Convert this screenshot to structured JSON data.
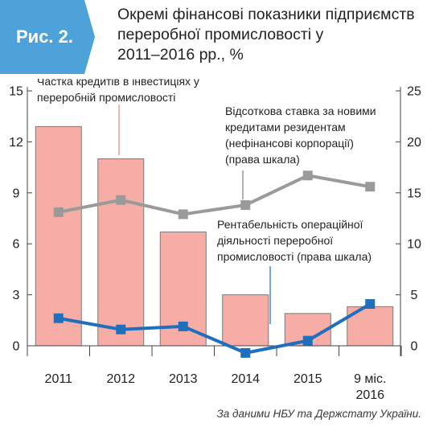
{
  "figure_label": "Рис. 2.",
  "title_lines": [
    "Окремі фінансові показники підприємств",
    "переробної промисловості у",
    "2011–2016 рр., %"
  ],
  "source": "За даними НБУ та Держстату України.",
  "colors": {
    "header_tab": "#4da3d9",
    "bars_fill": "#f6ada6",
    "bars_stroke": "#7a7a7a",
    "interest_line": "#9a9a9a",
    "profitability_line": "#1f6fbd"
  },
  "chart_data": {
    "type": "bar",
    "categories": [
      "2011",
      "2012",
      "2013",
      "2014",
      "2015",
      "9 міс. 2016"
    ],
    "ylim": [
      0,
      15
    ],
    "y2lim": [
      0,
      25
    ],
    "yticks": [
      "15",
      "12",
      "9",
      "6",
      "3",
      "0"
    ],
    "y2ticks": [
      "25",
      "20",
      "15",
      "10",
      "5",
      "0"
    ],
    "grid": false,
    "series": [
      {
        "name": "Частка кредитів в інвестиціях у переробній промисловості",
        "type": "bar",
        "axis": "left",
        "values": [
          12.9,
          11.0,
          6.7,
          3.0,
          1.9,
          2.3
        ]
      },
      {
        "name": "Відсоткова ставка за новими кредитами резидентам (нефінансові корпорації) (права шкала)",
        "type": "line",
        "axis": "right",
        "values": [
          13.1,
          14.3,
          12.9,
          13.8,
          16.7,
          15.6
        ]
      },
      {
        "name": "Рентабельність операційної діяльності переробної промисловості (права шкала)",
        "type": "line",
        "axis": "right",
        "values": [
          2.7,
          1.6,
          1.9,
          -0.7,
          0.5,
          4.1
        ]
      }
    ]
  }
}
